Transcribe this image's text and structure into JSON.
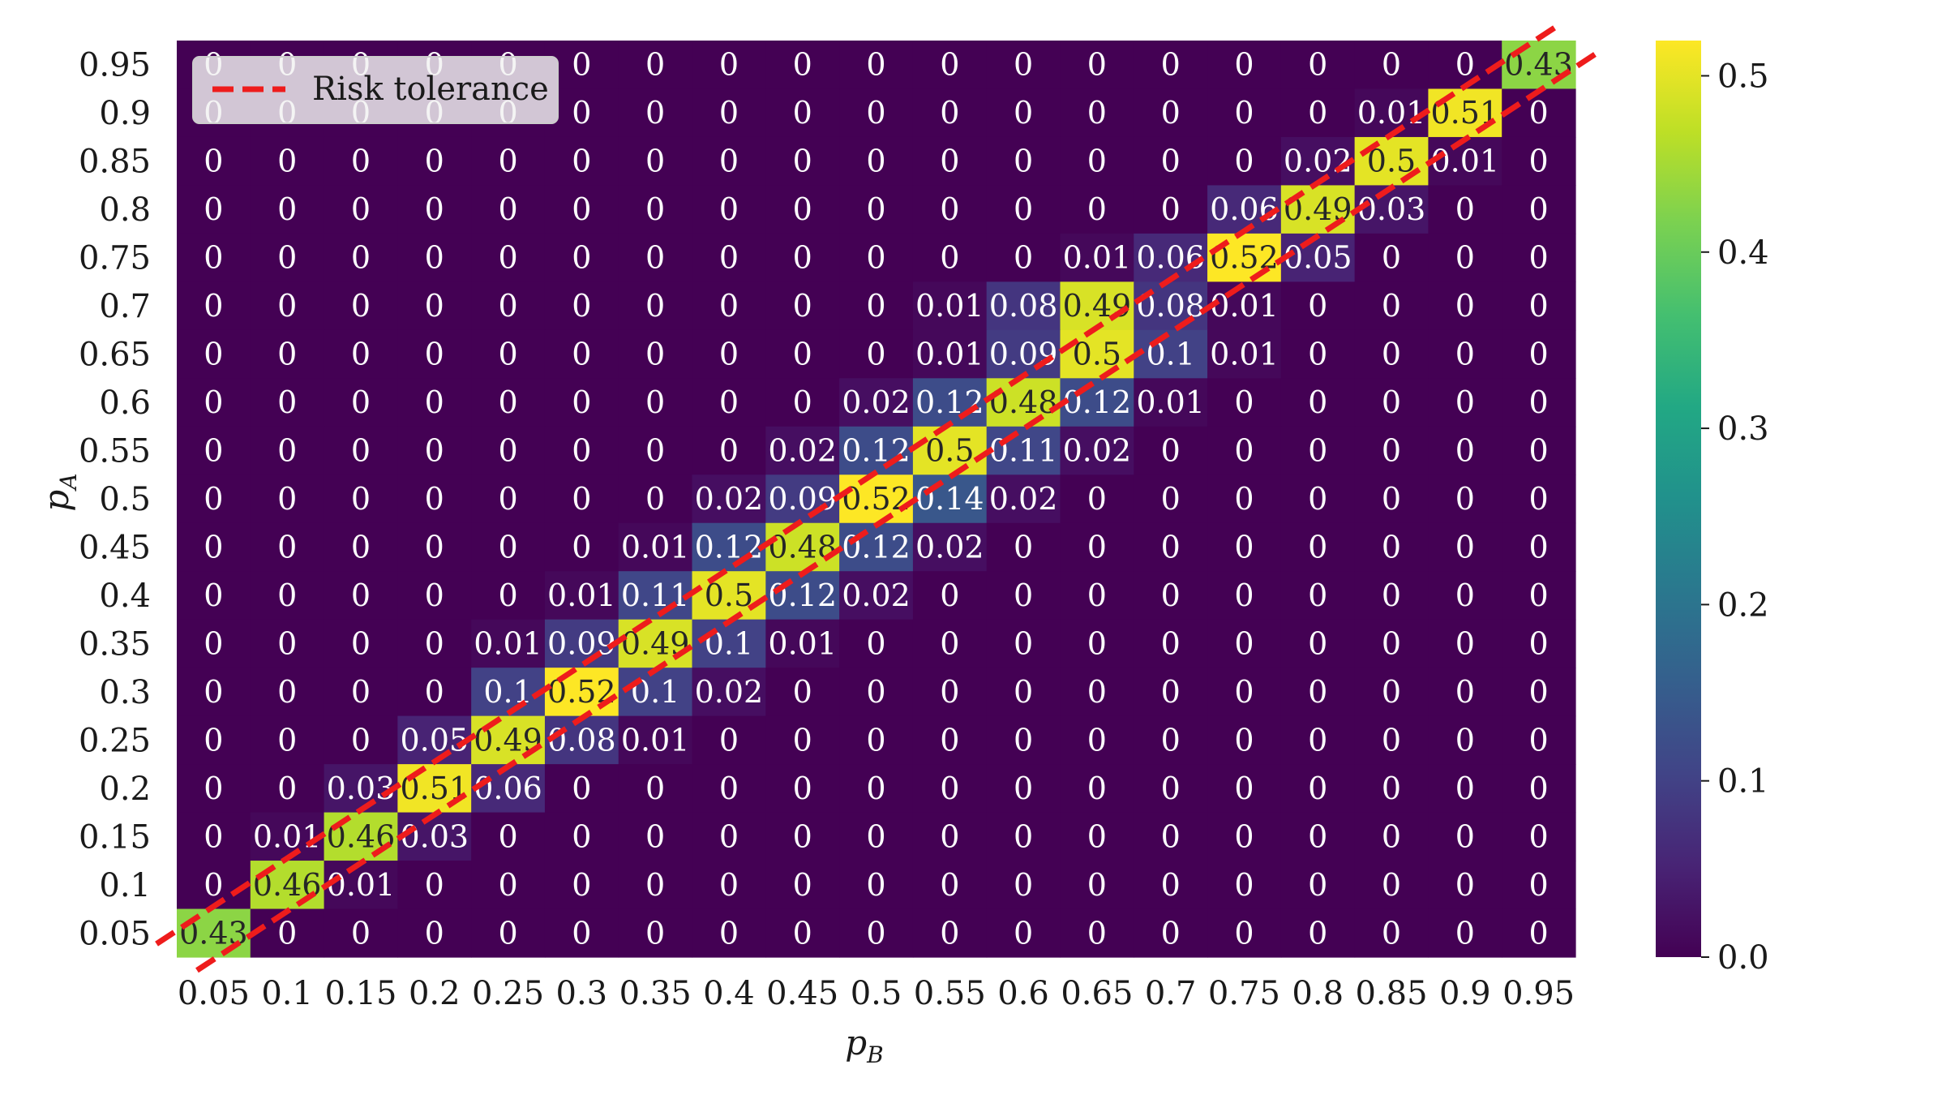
{
  "chart_data": {
    "type": "heatmap",
    "x_label": "p",
    "x_label_sub": "B",
    "y_label": "p",
    "y_label_sub": "A",
    "x_ticks": [
      "0.05",
      "0.1",
      "0.15",
      "0.2",
      "0.25",
      "0.3",
      "0.35",
      "0.4",
      "0.45",
      "0.5",
      "0.55",
      "0.6",
      "0.65",
      "0.7",
      "0.75",
      "0.8",
      "0.85",
      "0.9",
      "0.95"
    ],
    "y_ticks_top_to_bottom": [
      "0.95",
      "0.9",
      "0.85",
      "0.8",
      "0.75",
      "0.7",
      "0.65",
      "0.6",
      "0.55",
      "0.5",
      "0.45",
      "0.4",
      "0.35",
      "0.3",
      "0.25",
      "0.2",
      "0.15",
      "0.1",
      "0.05"
    ],
    "cell_labels_top_to_bottom": [
      [
        "0",
        "0",
        "0",
        "0",
        "0",
        "0",
        "0",
        "0",
        "0",
        "0",
        "0",
        "0",
        "0",
        "0",
        "0",
        "0",
        "0",
        "0",
        "0.43"
      ],
      [
        "0",
        "0",
        "0",
        "0",
        "0",
        "0",
        "0",
        "0",
        "0",
        "0",
        "0",
        "0",
        "0",
        "0",
        "0",
        "0",
        "0.01",
        "0.51",
        "0"
      ],
      [
        "0",
        "0",
        "0",
        "0",
        "0",
        "0",
        "0",
        "0",
        "0",
        "0",
        "0",
        "0",
        "0",
        "0",
        "0",
        "0.02",
        "0.5",
        "0.01",
        "0"
      ],
      [
        "0",
        "0",
        "0",
        "0",
        "0",
        "0",
        "0",
        "0",
        "0",
        "0",
        "0",
        "0",
        "0",
        "0",
        "0.06",
        "0.49",
        "0.03",
        "0",
        "0"
      ],
      [
        "0",
        "0",
        "0",
        "0",
        "0",
        "0",
        "0",
        "0",
        "0",
        "0",
        "0",
        "0",
        "0.01",
        "0.06",
        "0.52",
        "0.05",
        "0",
        "0",
        "0"
      ],
      [
        "0",
        "0",
        "0",
        "0",
        "0",
        "0",
        "0",
        "0",
        "0",
        "0",
        "0.01",
        "0.08",
        "0.49",
        "0.08",
        "0.01",
        "0",
        "0",
        "0",
        "0"
      ],
      [
        "0",
        "0",
        "0",
        "0",
        "0",
        "0",
        "0",
        "0",
        "0",
        "0",
        "0.01",
        "0.09",
        "0.5",
        "0.1",
        "0.01",
        "0",
        "0",
        "0",
        "0"
      ],
      [
        "0",
        "0",
        "0",
        "0",
        "0",
        "0",
        "0",
        "0",
        "0",
        "0.02",
        "0.12",
        "0.48",
        "0.12",
        "0.01",
        "0",
        "0",
        "0",
        "0",
        "0"
      ],
      [
        "0",
        "0",
        "0",
        "0",
        "0",
        "0",
        "0",
        "0",
        "0.02",
        "0.12",
        "0.5",
        "0.11",
        "0.02",
        "0",
        "0",
        "0",
        "0",
        "0",
        "0"
      ],
      [
        "0",
        "0",
        "0",
        "0",
        "0",
        "0",
        "0",
        "0.02",
        "0.09",
        "0.52",
        "0.14",
        "0.02",
        "0",
        "0",
        "0",
        "0",
        "0",
        "0",
        "0"
      ],
      [
        "0",
        "0",
        "0",
        "0",
        "0",
        "0",
        "0.01",
        "0.12",
        "0.48",
        "0.12",
        "0.02",
        "0",
        "0",
        "0",
        "0",
        "0",
        "0",
        "0",
        "0"
      ],
      [
        "0",
        "0",
        "0",
        "0",
        "0",
        "0.01",
        "0.11",
        "0.5",
        "0.12",
        "0.02",
        "0",
        "0",
        "0",
        "0",
        "0",
        "0",
        "0",
        "0",
        "0"
      ],
      [
        "0",
        "0",
        "0",
        "0",
        "0.01",
        "0.09",
        "0.49",
        "0.1",
        "0.01",
        "0",
        "0",
        "0",
        "0",
        "0",
        "0",
        "0",
        "0",
        "0",
        "0"
      ],
      [
        "0",
        "0",
        "0",
        "0",
        "0.1",
        "0.52",
        "0.1",
        "0.02",
        "0",
        "0",
        "0",
        "0",
        "0",
        "0",
        "0",
        "0",
        "0",
        "0",
        "0"
      ],
      [
        "0",
        "0",
        "0",
        "0.05",
        "0.49",
        "0.08",
        "0.01",
        "0",
        "0",
        "0",
        "0",
        "0",
        "0",
        "0",
        "0",
        "0",
        "0",
        "0",
        "0"
      ],
      [
        "0",
        "0",
        "0.03",
        "0.51",
        "0.06",
        "0",
        "0",
        "0",
        "0",
        "0",
        "0",
        "0",
        "0",
        "0",
        "0",
        "0",
        "0",
        "0",
        "0"
      ],
      [
        "0",
        "0.01",
        "0.46",
        "0.03",
        "0",
        "0",
        "0",
        "0",
        "0",
        "0",
        "0",
        "0",
        "0",
        "0",
        "0",
        "0",
        "0",
        "0",
        "0"
      ],
      [
        "0",
        "0.46",
        "0.01",
        "0",
        "0",
        "0",
        "0",
        "0",
        "0",
        "0",
        "0",
        "0",
        "0",
        "0",
        "0",
        "0",
        "0",
        "0",
        "0"
      ],
      [
        "0.43",
        "0",
        "0",
        "0",
        "0",
        "0",
        "0",
        "0",
        "0",
        "0",
        "0",
        "0",
        "0",
        "0",
        "0",
        "0",
        "0",
        "0",
        "0"
      ]
    ],
    "colorscale": "viridis",
    "vmin": 0,
    "vmax": 0.52,
    "colorbar_ticks": [
      "0.0",
      "0.1",
      "0.2",
      "0.3",
      "0.4",
      "0.5"
    ],
    "overlay_lines": {
      "name": "Risk tolerance",
      "style": "dashed",
      "color": "#ee1c1c",
      "count": 2
    },
    "legend": {
      "position": "upper-left",
      "entry": "Risk tolerance"
    }
  }
}
